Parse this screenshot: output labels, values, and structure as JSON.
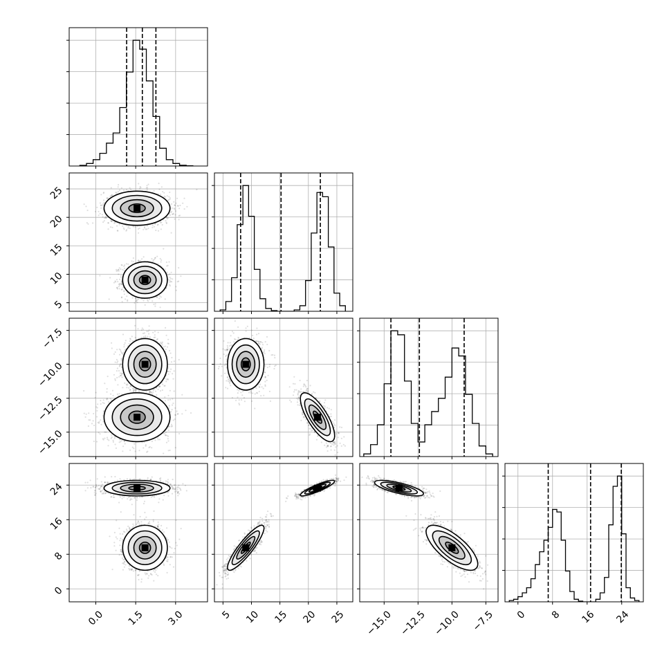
{
  "chart_data": {
    "type": "corner",
    "title": "",
    "grid": true,
    "parameters": [
      {
        "range": [
          -1.0,
          4.2
        ],
        "ticks": [
          "0.0",
          "1.5",
          "3.0"
        ],
        "tick_values": [
          0.0,
          1.5,
          3.0
        ],
        "quantiles": [
          1.16,
          1.75,
          2.26
        ],
        "hist_edges": [
          -0.6,
          -0.35,
          -0.1,
          0.15,
          0.4,
          0.65,
          0.9,
          1.15,
          1.4,
          1.65,
          1.9,
          2.15,
          2.4,
          2.65,
          2.9,
          3.15,
          3.4,
          3.65
        ],
        "hist_counts": [
          0.5,
          2,
          5,
          10,
          18,
          26,
          46,
          74,
          99,
          92,
          67,
          39,
          14,
          5,
          2,
          0.6,
          0.2
        ]
      },
      {
        "range": [
          3.5,
          27.8
        ],
        "ticks": [
          "5",
          "10",
          "15",
          "20",
          "25"
        ],
        "tick_values": [
          5,
          10,
          15,
          20,
          25
        ],
        "quantiles": [
          8.1,
          15.2,
          22.1
        ],
        "hist_edges": [
          4.5,
          5.5,
          6.5,
          7.5,
          8.5,
          9.5,
          10.5,
          11.5,
          12.5,
          13.5,
          14.5,
          15.5,
          16.5,
          17.5,
          18.5,
          19.5,
          20.5,
          21.5,
          22.5,
          23.5,
          24.5,
          25.5,
          26.5
        ],
        "hist_counts": [
          1,
          7,
          24,
          62,
          90,
          68,
          30,
          9,
          2,
          0.5,
          0,
          0,
          0,
          1,
          4,
          22,
          56,
          85,
          82,
          46,
          13,
          4
        ]
      },
      {
        "range": [
          -16.8,
          -6.6
        ],
        "ticks": [
          "−15.0",
          "−12.5",
          "−10.0",
          "−7.5"
        ],
        "tick_values": [
          -15.0,
          -12.5,
          -10.0,
          -7.5
        ],
        "quantiles": [
          -14.5,
          -12.4,
          -9.1
        ],
        "hist_edges": [
          -16.5,
          -16.0,
          -15.5,
          -15.0,
          -14.5,
          -14.0,
          -13.5,
          -13.0,
          -12.5,
          -12.0,
          -11.5,
          -11.0,
          -10.5,
          -10.0,
          -9.5,
          -9.0,
          -8.5,
          -8.0,
          -7.5,
          -7.0
        ],
        "hist_counts": [
          2,
          9,
          24,
          55,
          95,
          92,
          57,
          25,
          11,
          24,
          34,
          44,
          60,
          82,
          76,
          47,
          25,
          8,
          2
        ]
      },
      {
        "range": [
          -3.0,
          29.0
        ],
        "ticks": [
          "0",
          "8",
          "16",
          "24"
        ],
        "tick_values": [
          0,
          8,
          16,
          24
        ],
        "quantiles": [
          7.0,
          16.8,
          23.9
        ],
        "hist_edges": [
          -2,
          -1,
          0,
          1,
          2,
          3,
          4,
          5,
          6,
          7,
          8,
          9,
          10,
          11,
          12,
          13,
          14,
          15,
          16,
          17,
          18,
          19,
          20,
          21,
          22,
          23,
          24,
          25,
          26,
          27,
          28
        ],
        "hist_counts": [
          1,
          2,
          4,
          7,
          11,
          18,
          29,
          39,
          48,
          58,
          72,
          70,
          48,
          24,
          8,
          2,
          0.5,
          0,
          0,
          0,
          2,
          7,
          19,
          60,
          90,
          98,
          53,
          11,
          3,
          1
        ]
      }
    ],
    "clusters": [
      {
        "mean": [
          1.85,
          9.0,
          -10.0,
          9.5
        ],
        "sd": [
          0.42,
          1.6,
          0.95,
          2.6
        ]
      },
      {
        "mean": [
          1.55,
          21.6,
          -13.9,
          23.3
        ],
        "sd": [
          0.62,
          1.5,
          0.9,
          0.9
        ]
      }
    ],
    "pairwise_correlation": {
      "2_1": [
        0.0,
        -0.75
      ],
      "3_1": [
        0.88,
        0.88
      ],
      "3_2": [
        -0.72,
        -0.72
      ]
    },
    "contour_levels_sigma": [
      0.5,
      1.0,
      1.5,
      2.0
    ]
  }
}
